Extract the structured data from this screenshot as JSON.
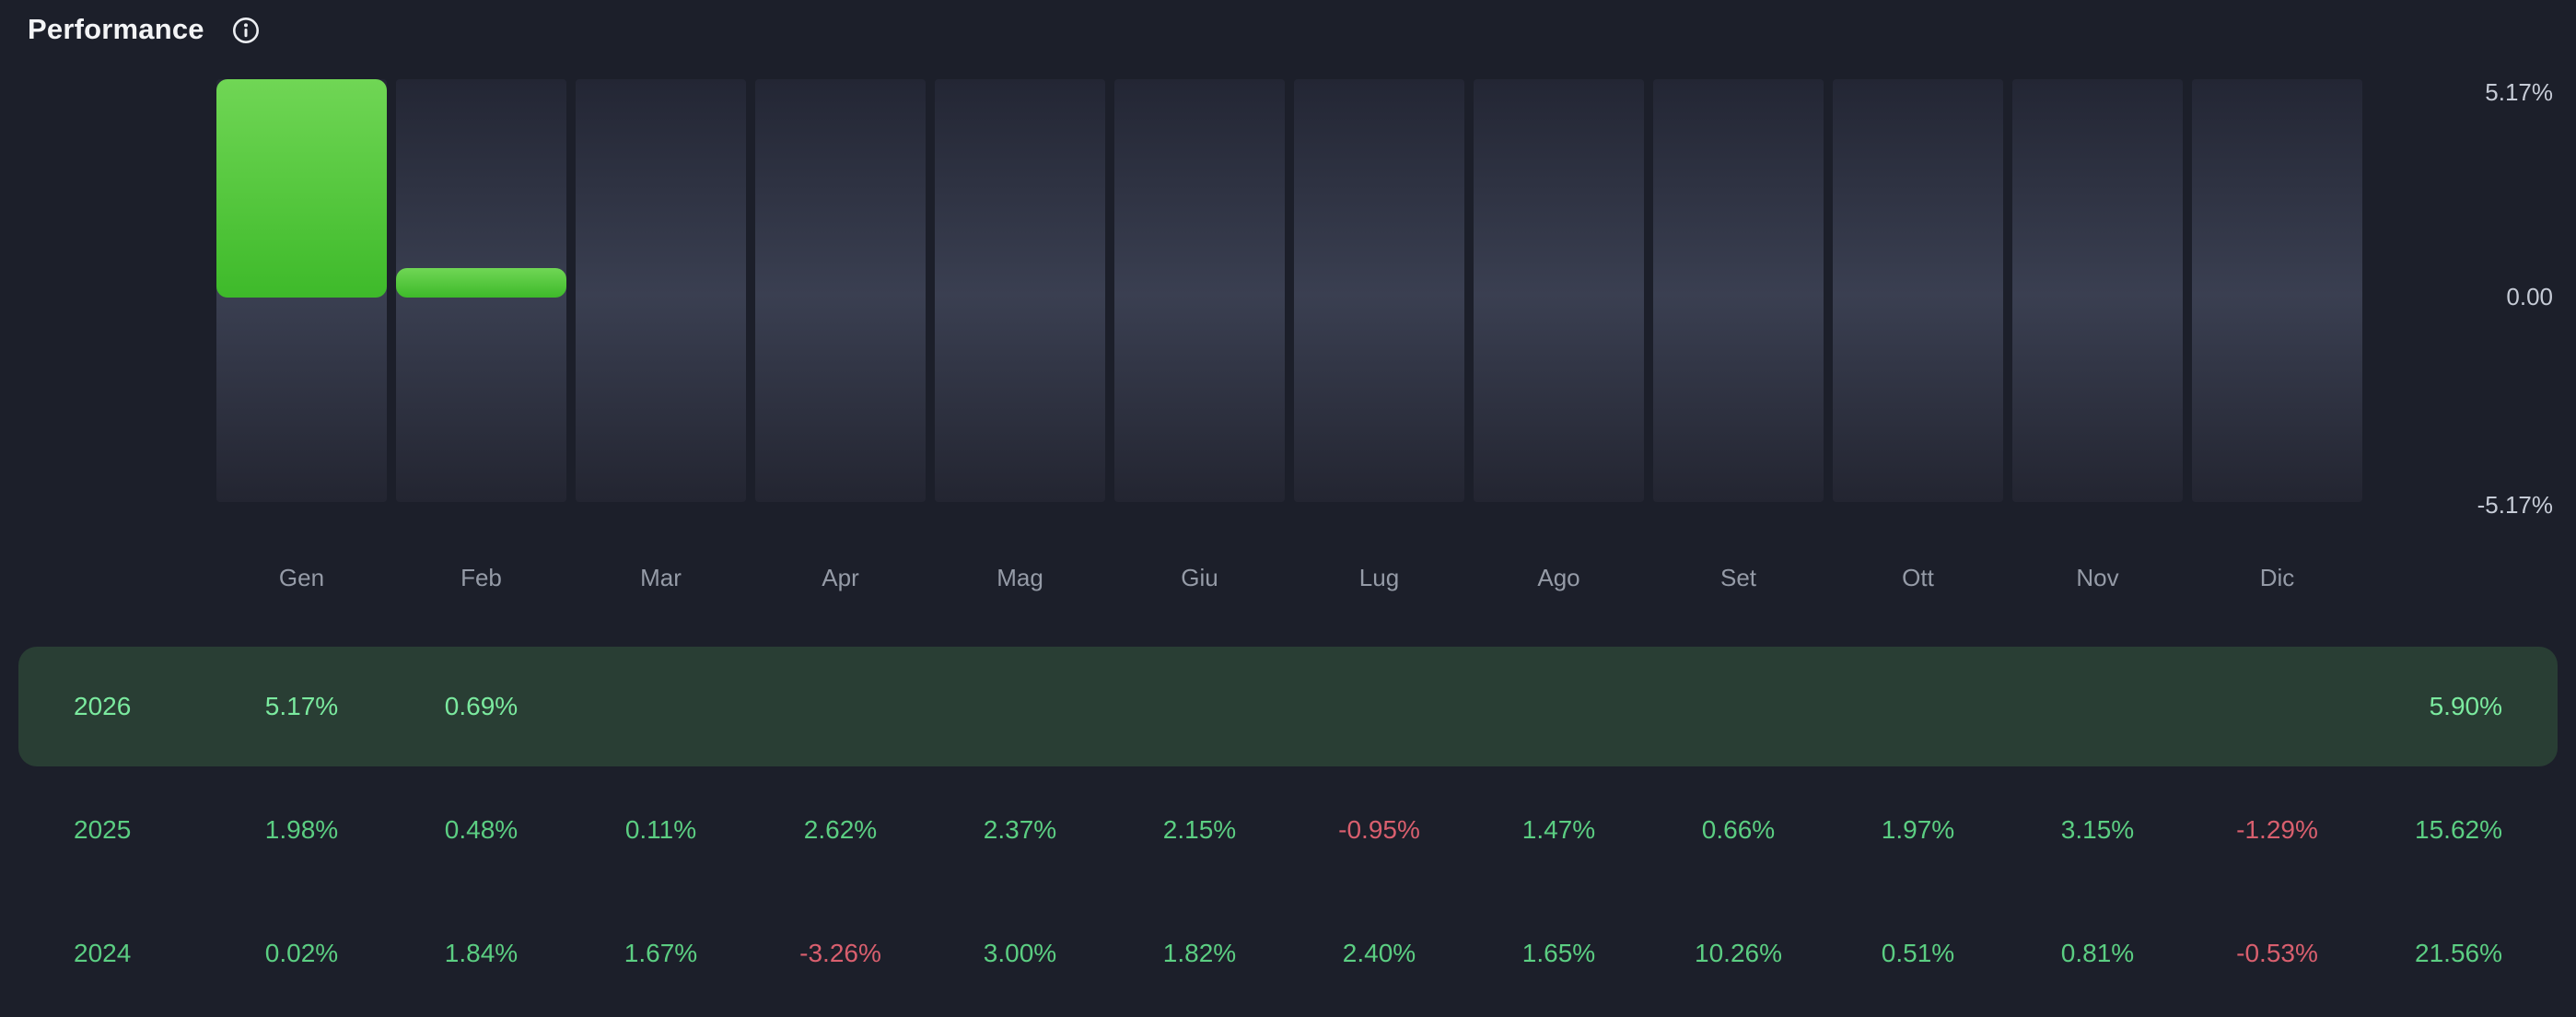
{
  "header": {
    "title": "Performance"
  },
  "chart_data": {
    "type": "bar",
    "title": "Performance",
    "categories": [
      "Gen",
      "Feb",
      "Mar",
      "Apr",
      "Mag",
      "Giu",
      "Lug",
      "Ago",
      "Set",
      "Ott",
      "Nov",
      "Dic"
    ],
    "values": [
      5.17,
      0.69,
      null,
      null,
      null,
      null,
      null,
      null,
      null,
      null,
      null,
      null
    ],
    "ylim": [
      -5.17,
      5.17
    ],
    "yticks": [
      "5.17%",
      "0.00",
      "-5.17%"
    ],
    "xlabel": "",
    "ylabel": "",
    "grid": false,
    "legend": "none"
  },
  "table": {
    "rows": [
      {
        "year": "2026",
        "highlighted": true,
        "values": [
          "5.17%",
          "0.69%",
          "",
          "",
          "",
          "",
          "",
          "",
          "",
          "",
          "",
          ""
        ],
        "total": "5.90%"
      },
      {
        "year": "2025",
        "highlighted": false,
        "values": [
          "1.98%",
          "0.48%",
          "0.11%",
          "2.62%",
          "2.37%",
          "2.15%",
          "-0.95%",
          "1.47%",
          "0.66%",
          "1.97%",
          "3.15%",
          "-1.29%"
        ],
        "total": "15.62%"
      },
      {
        "year": "2024",
        "highlighted": false,
        "values": [
          "0.02%",
          "1.84%",
          "1.67%",
          "-3.26%",
          "3.00%",
          "1.82%",
          "2.40%",
          "1.65%",
          "10.26%",
          "0.51%",
          "0.81%",
          "-0.53%"
        ],
        "total": "21.56%"
      }
    ]
  },
  "colors": {
    "bg": "#1c1f2a",
    "title": "#f3f4f6",
    "month": "#959ba7",
    "ytick": "#c6cbd6",
    "pos": "#5bce82",
    "neg": "#d95f6e",
    "hl_bg": "#293e34",
    "hl_text": "#7bea9f",
    "bar_top": "#70d655",
    "bar_bot": "#3eba2a",
    "col_top": "#232634",
    "col_mid": "#3a3f51",
    "col_bot": "#232531"
  }
}
